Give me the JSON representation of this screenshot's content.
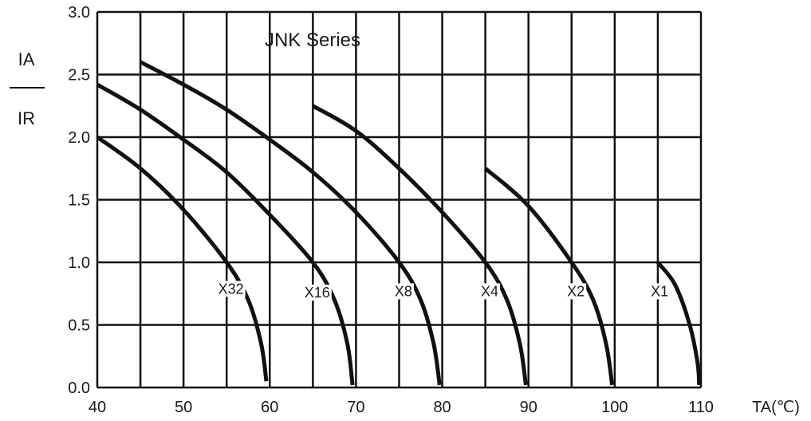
{
  "chart_data": {
    "type": "line",
    "title": "JNK Series",
    "xlabel": "TA(℃)",
    "ylabel_top": "IA",
    "ylabel_bottom": "IR",
    "xlim": [
      40,
      110
    ],
    "ylim": [
      0,
      3
    ],
    "x_ticks": [
      "40",
      "50",
      "60",
      "70",
      "80",
      "90",
      "100",
      "110"
    ],
    "y_ticks": [
      "0.0",
      "0.5",
      "1.0",
      "1.5",
      "2.0",
      "2.5",
      "3.0"
    ],
    "grid": true,
    "series": [
      {
        "name": "X32",
        "label_pos": [
          55.5,
          0.75
        ],
        "points": [
          [
            40,
            2.0
          ],
          [
            45,
            1.75
          ],
          [
            50,
            1.42
          ],
          [
            55,
            1.0
          ],
          [
            57.5,
            0.7
          ],
          [
            59,
            0.35
          ],
          [
            59.6,
            0.05
          ]
        ]
      },
      {
        "name": "X16",
        "label_pos": [
          65.5,
          0.72
        ],
        "points": [
          [
            40,
            2.42
          ],
          [
            45,
            2.22
          ],
          [
            50,
            1.98
          ],
          [
            55,
            1.72
          ],
          [
            60,
            1.38
          ],
          [
            65,
            1.0
          ],
          [
            67.5,
            0.7
          ],
          [
            69,
            0.35
          ],
          [
            69.6,
            0.02
          ]
        ]
      },
      {
        "name": "X8",
        "label_pos": [
          75.5,
          0.73
        ],
        "points": [
          [
            45,
            2.6
          ],
          [
            50,
            2.42
          ],
          [
            55,
            2.22
          ],
          [
            60,
            1.98
          ],
          [
            65,
            1.72
          ],
          [
            70,
            1.4
          ],
          [
            75,
            1.0
          ],
          [
            77.5,
            0.7
          ],
          [
            79,
            0.35
          ],
          [
            79.7,
            0.02
          ]
        ]
      },
      {
        "name": "X4",
        "label_pos": [
          85.5,
          0.73
        ],
        "points": [
          [
            65,
            2.25
          ],
          [
            70,
            2.05
          ],
          [
            75,
            1.75
          ],
          [
            80,
            1.4
          ],
          [
            85,
            1.0
          ],
          [
            87.5,
            0.7
          ],
          [
            89,
            0.35
          ],
          [
            89.7,
            0.02
          ]
        ]
      },
      {
        "name": "X2",
        "label_pos": [
          95.5,
          0.73
        ],
        "points": [
          [
            85,
            1.75
          ],
          [
            90,
            1.45
          ],
          [
            95,
            1.0
          ],
          [
            97.5,
            0.7
          ],
          [
            99,
            0.35
          ],
          [
            99.7,
            0.02
          ]
        ]
      },
      {
        "name": "X1",
        "label_pos": [
          105.2,
          0.73
        ],
        "points": [
          [
            105,
            1.0
          ],
          [
            107,
            0.82
          ],
          [
            108.7,
            0.5
          ],
          [
            109.6,
            0.2
          ],
          [
            109.8,
            0.02
          ]
        ]
      }
    ]
  }
}
